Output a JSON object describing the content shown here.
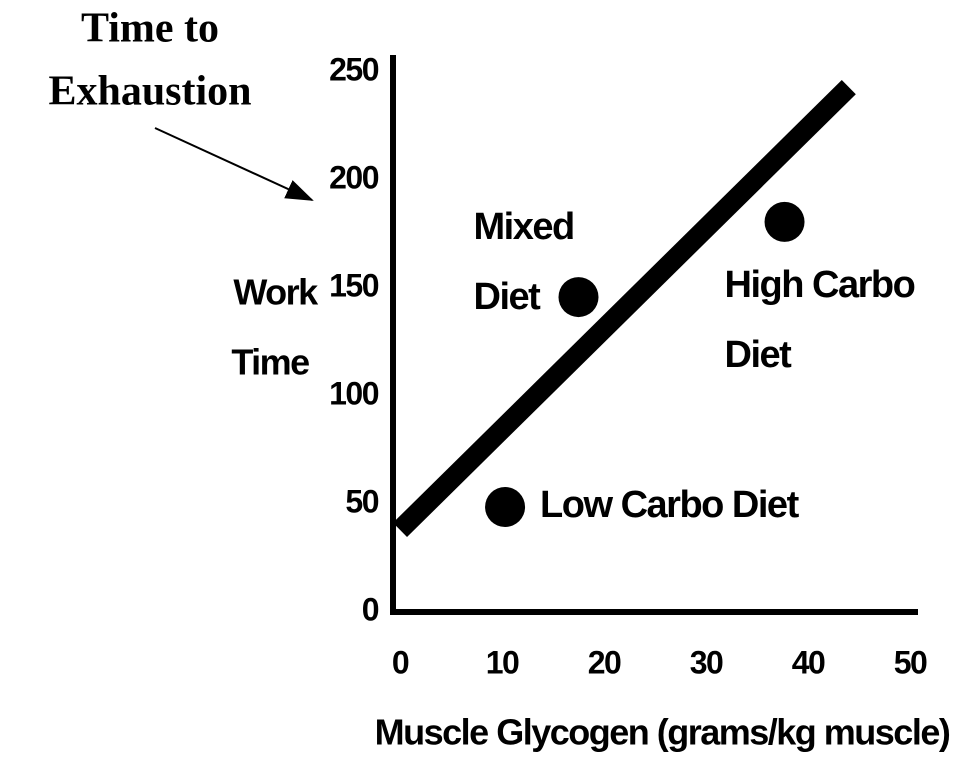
{
  "chart_data": {
    "type": "scatter",
    "annotation": [
      "Time to",
      "Exhaustion"
    ],
    "ylabel": [
      "Work",
      "Time"
    ],
    "xlabel": "Muscle Glycogen (grams/kg muscle)",
    "x": [
      10.3,
      17.5,
      37.7
    ],
    "values": [
      48.6,
      145.8,
      180.6
    ],
    "point_labels": [
      [
        "Low Carbo Diet"
      ],
      [
        "Mixed",
        "Diet"
      ],
      [
        "High Carbo",
        "Diet"
      ]
    ],
    "color": "#000000",
    "trend_line": {
      "x": [
        0,
        44
      ],
      "values": [
        38,
        243
      ]
    },
    "xlim": [
      0,
      50
    ],
    "ylim": [
      0,
      250
    ],
    "xticks": [
      0,
      10,
      20,
      30,
      40,
      50
    ],
    "yticks": [
      0,
      50,
      100,
      150,
      200,
      250
    ]
  }
}
